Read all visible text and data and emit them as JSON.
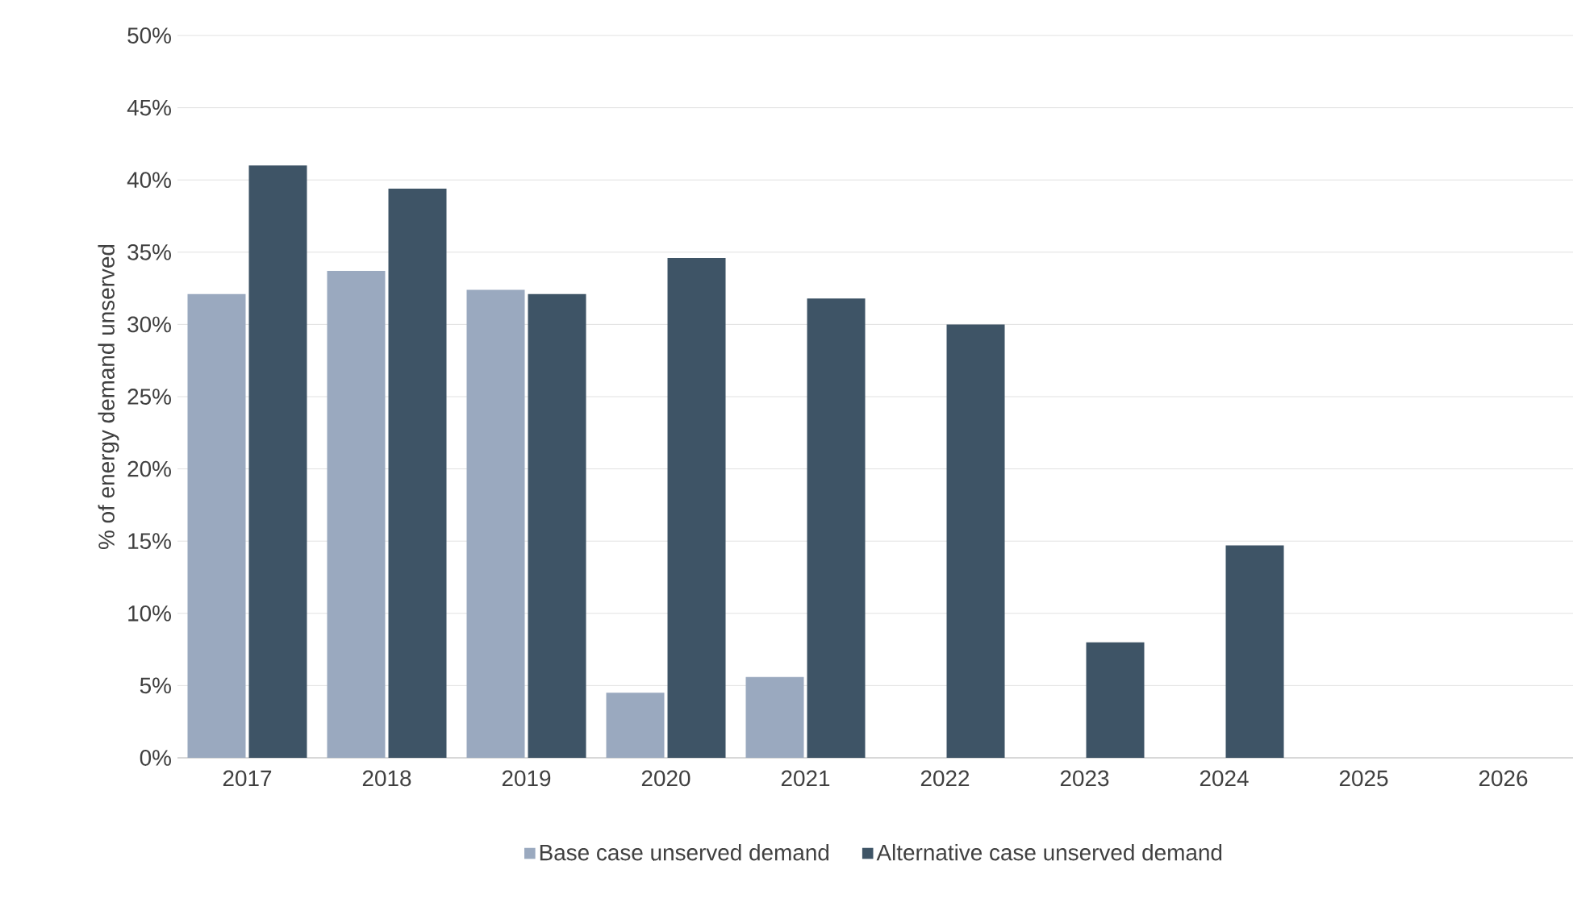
{
  "chart_data": {
    "type": "bar",
    "ylabel": "% of energy demand unserved",
    "categories": [
      "2017",
      "2018",
      "2019",
      "2020",
      "2021",
      "2022",
      "2023",
      "2024",
      "2025",
      "2026"
    ],
    "series": [
      {
        "name": "Base case unserved demand",
        "color": "#9aa9bf",
        "values": [
          32.1,
          33.7,
          32.4,
          4.5,
          5.6,
          0,
          0,
          0,
          0,
          0
        ]
      },
      {
        "name": "Alternative case unserved demand",
        "color": "#3e5466",
        "values": [
          41.0,
          39.4,
          32.1,
          34.6,
          31.8,
          30.0,
          8.0,
          14.7,
          0,
          0
        ]
      }
    ],
    "ylim": [
      0,
      50
    ],
    "yticks": [
      {
        "value": 0,
        "label": "0%"
      },
      {
        "value": 5,
        "label": "5%"
      },
      {
        "value": 10,
        "label": "10%"
      },
      {
        "value": 15,
        "label": "15%"
      },
      {
        "value": 20,
        "label": "20%"
      },
      {
        "value": 25,
        "label": "25%"
      },
      {
        "value": 30,
        "label": "30%"
      },
      {
        "value": 35,
        "label": "35%"
      },
      {
        "value": 40,
        "label": "40%"
      },
      {
        "value": 45,
        "label": "45%"
      },
      {
        "value": 50,
        "label": "50%"
      }
    ],
    "grid": "y",
    "legend": "bottom"
  }
}
